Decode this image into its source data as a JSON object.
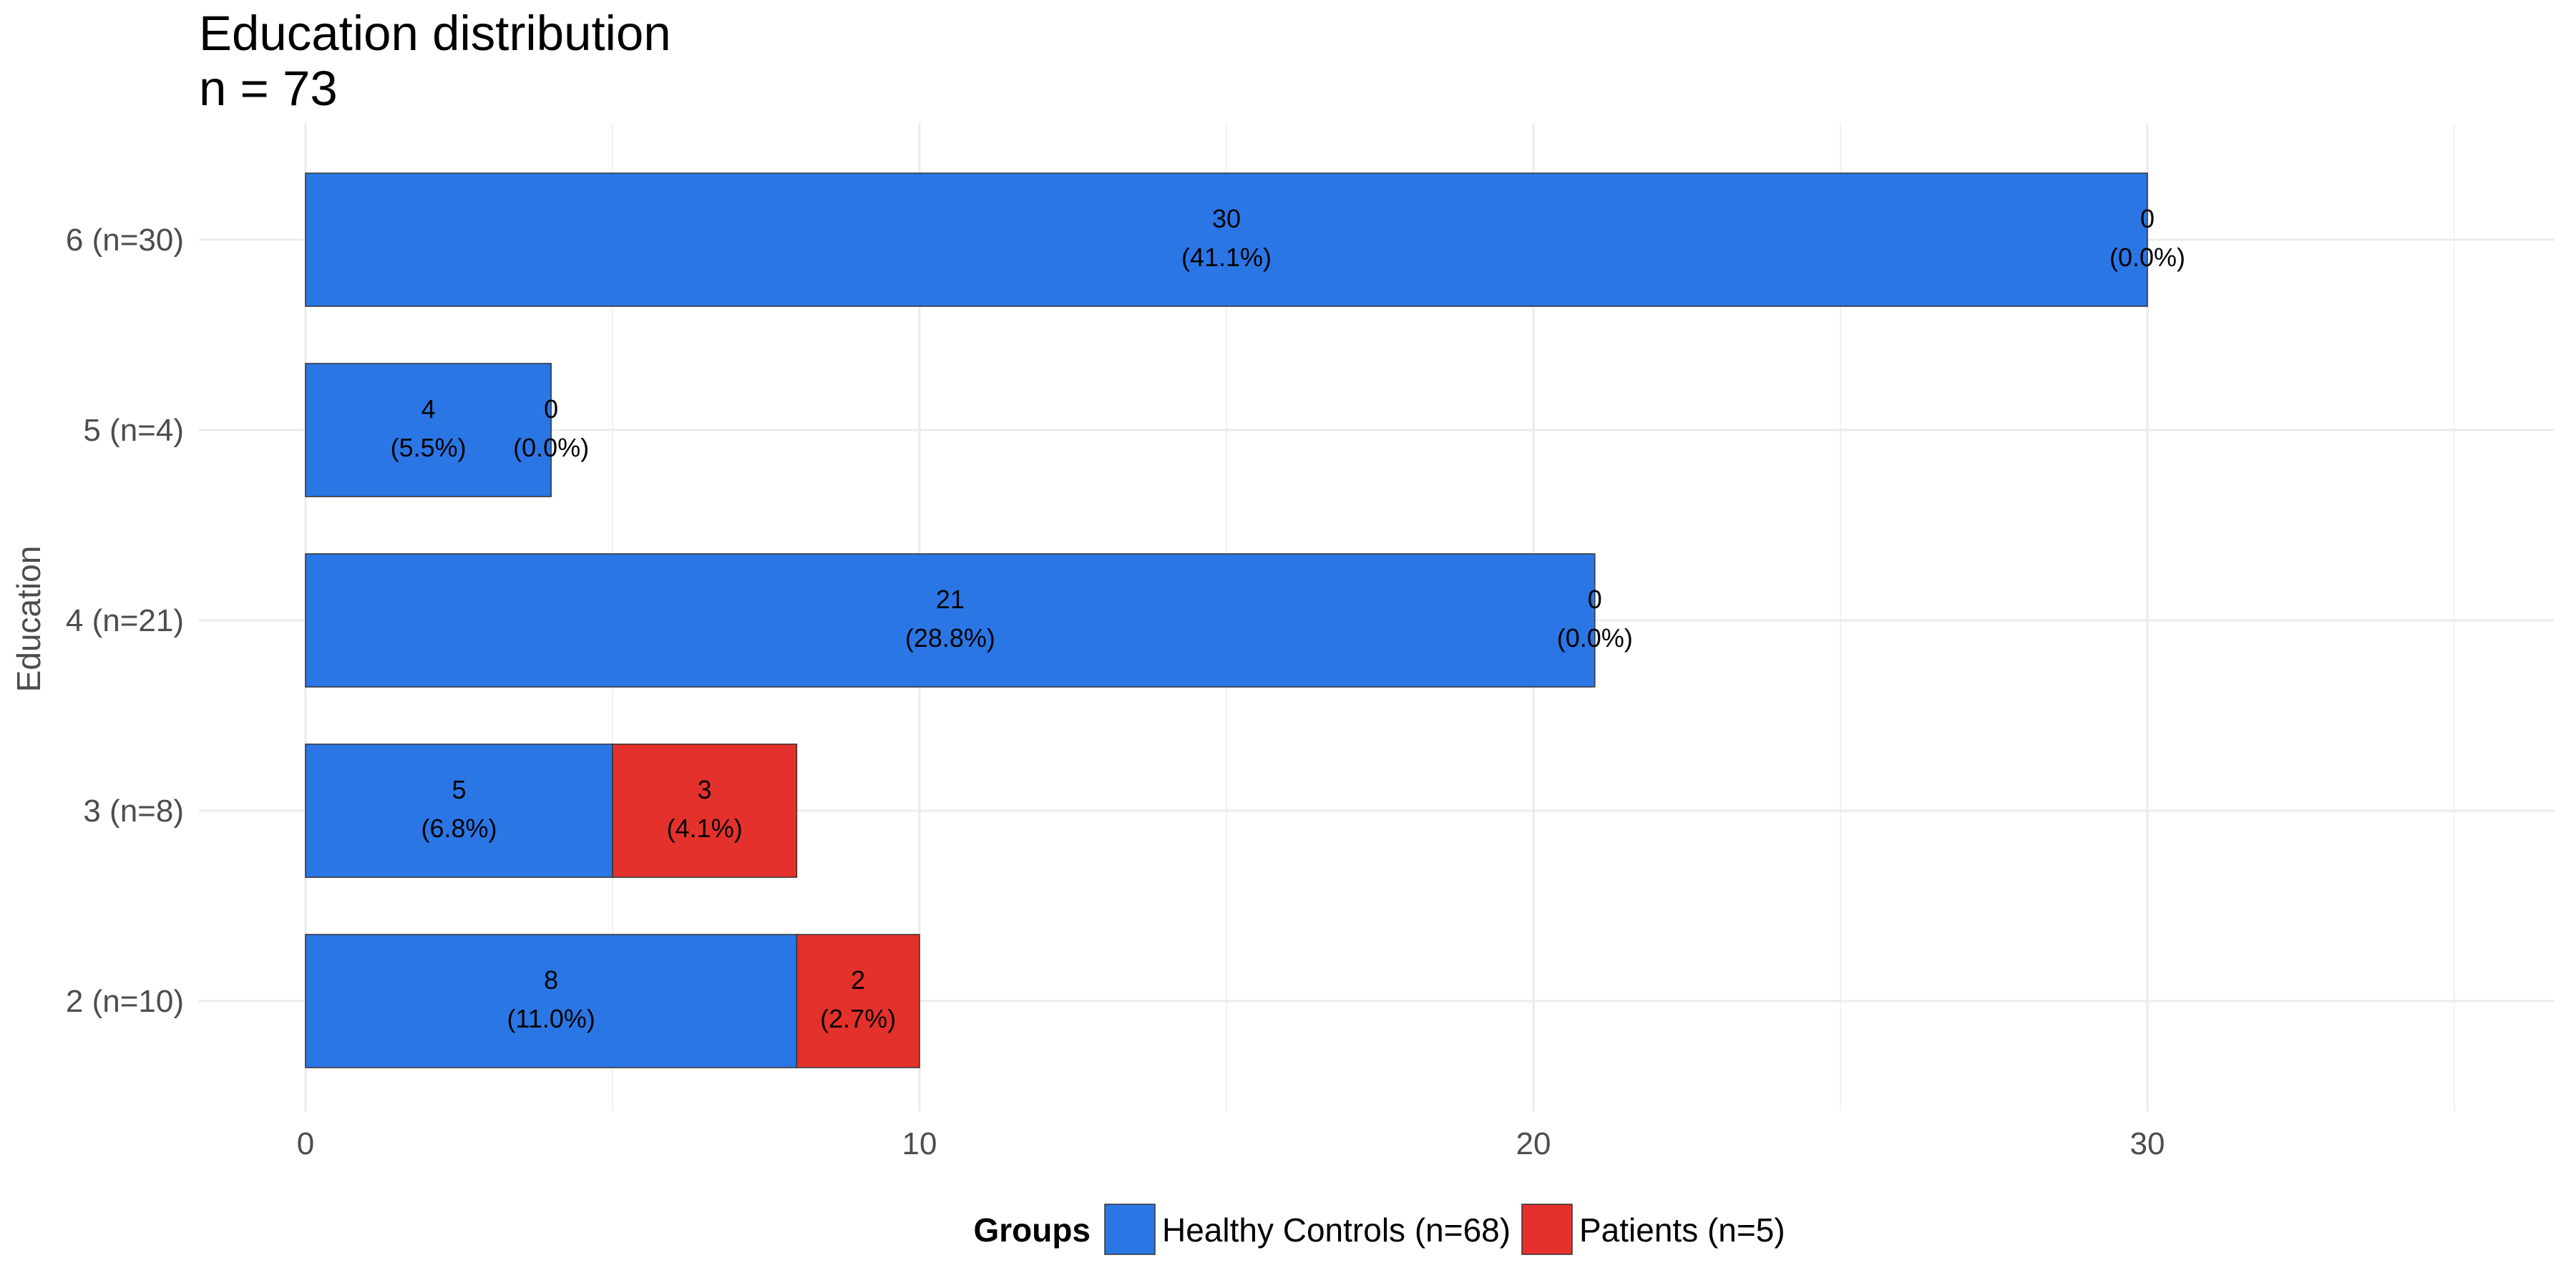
{
  "chart_data": {
    "type": "bar",
    "orientation": "horizontal",
    "stacked": true,
    "title": "Education distribution",
    "subtitle": "n = 73",
    "xlabel": "",
    "ylabel": "Education",
    "xlim": [
      0,
      36.5
    ],
    "xticks": [
      0,
      10,
      20,
      30
    ],
    "grid": true,
    "legend_position": "bottom",
    "legend_title": "Groups",
    "categories": [
      "6 (n=30)",
      "5 (n=4)",
      "4 (n=21)",
      "3 (n=8)",
      "2 (n=10)"
    ],
    "series": [
      {
        "name": "Healthy Controls (n=68)",
        "color": "#2B76E5",
        "values": [
          30,
          4,
          21,
          5,
          8
        ],
        "labels": [
          "30\n(41.1%)",
          "4\n(5.5%)",
          "21\n(28.8%)",
          "5\n(6.8%)",
          "8\n(11.0%)"
        ]
      },
      {
        "name": "Patients (n=5)",
        "color": "#E5312B",
        "values": [
          0,
          0,
          0,
          3,
          2
        ],
        "labels": [
          "0\n(0.0%)",
          "0\n(0.0%)",
          "0\n(0.0%)",
          "3\n(4.1%)",
          "2\n(2.7%)"
        ]
      }
    ]
  }
}
